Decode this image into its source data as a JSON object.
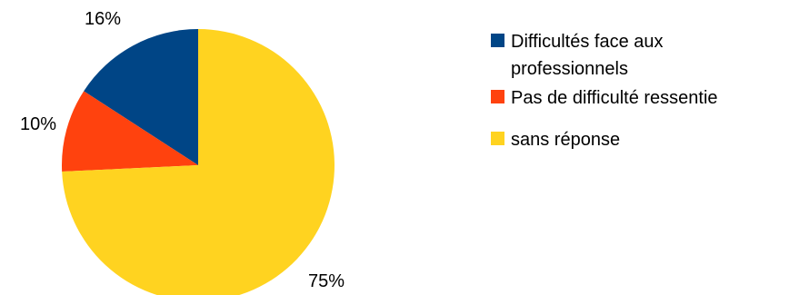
{
  "chart_data": {
    "type": "pie",
    "title": "",
    "slices": [
      {
        "label": "Difficultés face aux professionnels",
        "legend_lines": [
          "Difficultés face aux",
          "professionnels"
        ],
        "value": 16,
        "display": "16%",
        "color": "#004586"
      },
      {
        "label": "Pas de difficulté ressentie",
        "legend_lines": [
          "Pas de difficulté ressentie"
        ],
        "value": 10,
        "display": "10%",
        "color": "#ff420e"
      },
      {
        "label": "sans réponse",
        "legend_lines": [
          "sans réponse"
        ],
        "value": 75,
        "display": "75%",
        "color": "#ffd320"
      }
    ],
    "start_angle_deg": 0,
    "direction": "counterclockwise",
    "legend_position": "right"
  }
}
